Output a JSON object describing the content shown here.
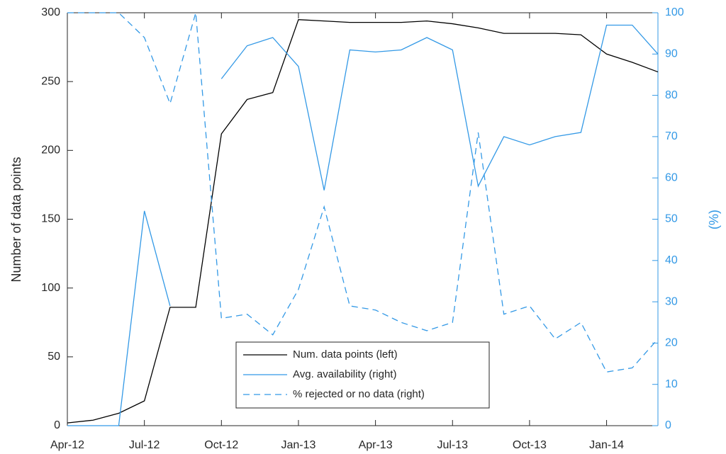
{
  "chart_data": {
    "type": "line",
    "ylabel": "Number of data points",
    "y2label": "(%)",
    "x": [
      0,
      1,
      2,
      3,
      4,
      5,
      6,
      7,
      8,
      9,
      10,
      11,
      12,
      13,
      14,
      15,
      16,
      17,
      18,
      19,
      20,
      21,
      22,
      23
    ],
    "xlim": [
      0,
      23
    ],
    "xticks": [
      {
        "value": 0,
        "label": "Apr-12"
      },
      {
        "value": 3,
        "label": "Jul-12"
      },
      {
        "value": 6,
        "label": "Oct-12"
      },
      {
        "value": 9,
        "label": "Jan-13"
      },
      {
        "value": 12,
        "label": "Apr-13"
      },
      {
        "value": 15,
        "label": "Jul-13"
      },
      {
        "value": 18,
        "label": "Oct-13"
      },
      {
        "value": 21,
        "label": "Jan-14"
      }
    ],
    "ylim": [
      0,
      300
    ],
    "yticks": [
      0,
      50,
      100,
      150,
      200,
      250,
      300
    ],
    "y2lim": [
      0,
      100
    ],
    "y2ticks": [
      0,
      10,
      20,
      30,
      40,
      50,
      60,
      70,
      80,
      90,
      100
    ],
    "y2color": "#3399e6",
    "legend": "bottom-center",
    "series": [
      {
        "name": "Num. data points (left)",
        "color": "#000000",
        "linestyle": "solid",
        "axis": "y",
        "values": [
          2,
          4,
          9,
          18,
          86,
          86,
          212,
          237,
          242,
          295,
          294,
          293,
          293,
          293,
          294,
          292,
          289,
          285,
          285,
          285,
          284,
          270,
          264,
          257
        ]
      },
      {
        "name": "Avg. availability (right)",
        "color": "#3399e6",
        "linestyle": "solid",
        "axis": "y2",
        "values": [
          0,
          0,
          0,
          52,
          29,
          null,
          84,
          92,
          94,
          87,
          57,
          91,
          90.5,
          91,
          94,
          91,
          58,
          70,
          68,
          70,
          71,
          97,
          97,
          90
        ]
      },
      {
        "name": "% rejected or no data (right)",
        "color": "#3399e6",
        "linestyle": "dashed",
        "axis": "y2",
        "values": [
          100,
          100,
          100,
          94,
          78,
          100,
          26,
          27,
          22,
          33,
          53,
          29,
          28,
          25,
          23,
          25,
          71,
          27,
          29,
          21,
          25,
          13,
          14,
          21
        ]
      }
    ]
  }
}
